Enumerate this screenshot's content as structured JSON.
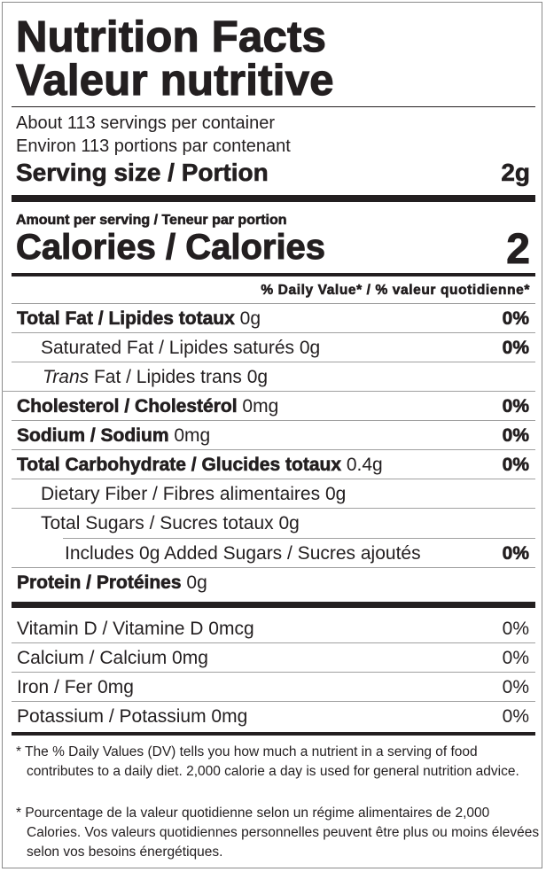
{
  "title_en": "Nutrition Facts",
  "title_fr": "Valeur nutritive",
  "servings_en": "About 113 servings per container",
  "servings_fr": "Environ 113 portions par contenant",
  "serving_size_label": "Serving size / Portion",
  "serving_size_value": "2g",
  "amount_per_serving": "Amount per serving / Teneur par portion",
  "calories_label": "Calories / Calories",
  "calories_value": "2",
  "dv_header": "% Daily Value* / % valeur quotidienne*",
  "nutrients": [
    {
      "name": "Total Fat / Lipides totaux",
      "amount": "0g",
      "dv": "0%"
    },
    {
      "name": "Saturated Fat / Lipides saturés",
      "amount": "0g",
      "dv": "0%"
    },
    {
      "name_italic": "Trans",
      "name": " Fat / Lipides trans",
      "amount": "0g"
    },
    {
      "name": "Cholesterol / Cholestérol",
      "amount": "0mg",
      "dv": "0%"
    },
    {
      "name": "Sodium / Sodium",
      "amount": "0mg",
      "dv": "0%"
    },
    {
      "name": "Total Carbohydrate / Glucides totaux",
      "amount": "0.4g",
      "dv": "0%"
    },
    {
      "name": "Dietary Fiber / Fibres alimentaires",
      "amount": "0g"
    },
    {
      "name": "Total Sugars / Sucres totaux",
      "amount": "0g"
    },
    {
      "name": "Includes 0g Added Sugars / Sucres ajoutés",
      "dv": "0%"
    },
    {
      "name": "Protein / Protéines",
      "amount": "0g"
    }
  ],
  "vitamins": [
    {
      "name": "Vitamin D / Vitamine D 0mcg",
      "dv": "0%"
    },
    {
      "name": "Calcium / Calcium 0mg",
      "dv": "0%"
    },
    {
      "name": "Iron / Fer 0mg",
      "dv": "0%"
    },
    {
      "name": "Potassium / Potassium 0mg",
      "dv": "0%"
    }
  ],
  "footnote_en": "* The % Daily Values (DV) tells you how much a nutrient in a serving of food contributes to a daily diet. 2,000 calorie a day is used for general nutrition advice.",
  "footnote_fr": "* Pourcentage de la valeur quotidienne selon un régime alimentaires de 2,000 Calories. Vos valeurs quotidiennes personnelles peuvent être plus ou moins élevées selon vos besoins énergétiques."
}
